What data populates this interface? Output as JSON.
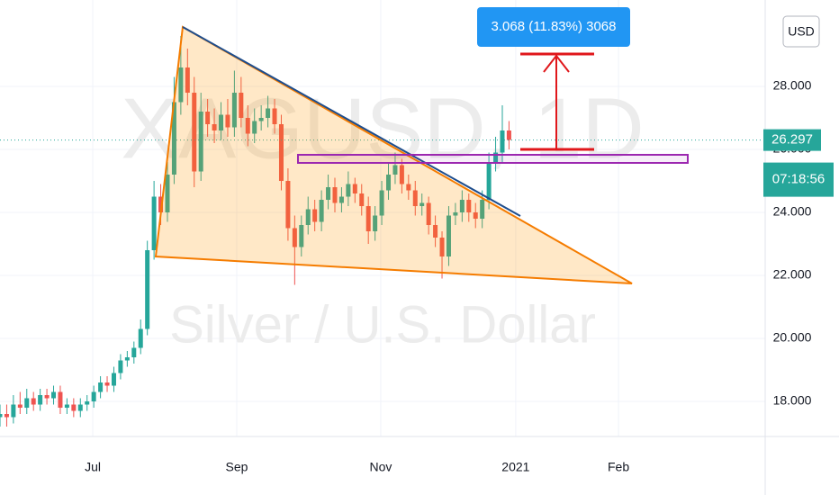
{
  "chart_data": {
    "type": "candlestick",
    "watermark_symbol": "XAGUSD, 1D",
    "watermark_name": "Silver / U.S. Dollar",
    "currency": "USD",
    "last_price": 26.297,
    "countdown": "07:18:56",
    "measure_label": "3.068 (11.83%) 3068",
    "up_color": "#26a69a",
    "down_color": "#ef5350",
    "grid": true,
    "x": [
      0,
      2,
      4,
      6,
      8,
      10,
      12,
      14,
      16,
      18,
      20,
      22,
      24,
      26,
      28,
      30,
      32,
      34,
      36,
      38,
      40,
      42,
      44,
      46,
      48,
      50,
      52,
      54,
      56,
      58,
      60,
      62,
      64,
      66,
      68,
      70,
      72,
      74,
      76,
      78,
      80,
      82,
      84,
      86,
      88,
      90,
      92,
      94,
      96,
      98,
      100,
      102,
      104,
      106,
      108,
      110,
      112,
      114,
      116,
      118,
      120,
      122,
      124,
      126,
      128,
      130,
      132,
      134,
      136,
      138,
      140,
      142,
      144,
      146,
      148,
      150,
      152
    ],
    "open": [
      17.5,
      17.6,
      17.5,
      17.9,
      17.8,
      18.1,
      17.9,
      18.2,
      18.1,
      18.3,
      17.8,
      17.9,
      17.7,
      17.9,
      18.0,
      18.3,
      18.6,
      18.5,
      18.9,
      19.3,
      19.4,
      19.7,
      20.3,
      22.8,
      24.5,
      24.0,
      25.2,
      27.5,
      28.6,
      27.8,
      25.3,
      27.2,
      26.8,
      26.6,
      27.1,
      26.7,
      27.8,
      27.0,
      26.5,
      26.9,
      27.0,
      27.3,
      26.8,
      25.0,
      23.5,
      22.9,
      23.6,
      24.1,
      23.7,
      24.4,
      24.8,
      24.3,
      24.5,
      24.9,
      24.6,
      24.2,
      23.4,
      23.9,
      24.7,
      25.2,
      25.5,
      24.9,
      24.7,
      24.2,
      24.3,
      23.6,
      23.2,
      22.6,
      23.9,
      24.0,
      24.4,
      24.0,
      23.8,
      24.4,
      25.6,
      25.9,
      26.6
    ],
    "high": [
      17.9,
      17.9,
      18.2,
      18.3,
      18.4,
      18.3,
      18.4,
      18.4,
      18.5,
      18.5,
      18.1,
      18.1,
      18.1,
      18.2,
      18.5,
      18.8,
      18.8,
      19.1,
      19.5,
      19.6,
      19.9,
      20.6,
      23.1,
      25.0,
      24.9,
      25.6,
      28.3,
      29.6,
      29.2,
      28.3,
      27.8,
      27.6,
      27.3,
      27.5,
      27.6,
      28.5,
      28.3,
      27.4,
      27.3,
      27.4,
      27.7,
      27.6,
      27.1,
      25.4,
      23.9,
      23.9,
      24.5,
      24.4,
      24.7,
      25.2,
      25.1,
      24.8,
      25.3,
      25.1,
      24.9,
      24.5,
      24.2,
      25.0,
      25.6,
      25.9,
      25.7,
      25.2,
      25.0,
      24.6,
      24.5,
      23.9,
      23.4,
      24.2,
      24.3,
      24.7,
      24.6,
      24.3,
      24.7,
      25.9,
      26.4,
      27.4,
      26.9
    ],
    "low": [
      17.2,
      17.2,
      17.3,
      17.6,
      17.6,
      17.7,
      17.7,
      17.9,
      17.9,
      17.6,
      17.6,
      17.5,
      17.5,
      17.7,
      17.8,
      18.1,
      18.3,
      18.3,
      18.7,
      19.1,
      19.2,
      19.5,
      20.1,
      22.5,
      23.6,
      23.7,
      24.9,
      27.1,
      27.4,
      24.8,
      25.0,
      26.4,
      26.2,
      26.3,
      26.4,
      26.4,
      26.7,
      26.1,
      26.2,
      26.6,
      26.7,
      26.5,
      24.7,
      23.1,
      21.7,
      22.6,
      23.3,
      23.4,
      23.4,
      24.1,
      24.0,
      24.0,
      24.2,
      24.3,
      23.9,
      23.0,
      23.1,
      23.6,
      24.4,
      24.9,
      24.6,
      24.4,
      23.9,
      23.9,
      23.3,
      22.9,
      21.9,
      22.3,
      23.6,
      23.7,
      23.7,
      23.5,
      23.5,
      24.1,
      25.3,
      25.6,
      26.0
    ],
    "close": [
      17.6,
      17.5,
      17.9,
      17.8,
      18.1,
      17.9,
      18.2,
      18.1,
      18.3,
      17.8,
      17.9,
      17.7,
      17.9,
      18.0,
      18.3,
      18.6,
      18.5,
      18.9,
      19.3,
      19.4,
      19.7,
      20.3,
      22.8,
      24.5,
      24.0,
      25.2,
      27.5,
      28.6,
      27.8,
      25.3,
      27.2,
      26.8,
      26.6,
      27.1,
      26.7,
      27.8,
      27.0,
      26.5,
      26.9,
      27.0,
      27.3,
      26.8,
      25.0,
      23.5,
      22.9,
      23.6,
      24.1,
      23.7,
      24.4,
      24.8,
      24.3,
      24.5,
      24.9,
      24.6,
      24.2,
      23.4,
      23.9,
      24.7,
      25.2,
      25.5,
      24.9,
      24.7,
      24.2,
      24.3,
      23.6,
      23.2,
      22.6,
      23.9,
      24.0,
      24.4,
      24.0,
      23.8,
      24.4,
      25.6,
      25.9,
      26.6,
      26.3
    ],
    "xlim": [
      0,
      228.5
    ],
    "ylim": [
      16.886,
      30.743
    ],
    "xticks": [
      {
        "value": 27.7,
        "label": "Jul"
      },
      {
        "value": 70.7,
        "label": "Sep"
      },
      {
        "value": 113.7,
        "label": "Nov"
      },
      {
        "value": 154,
        "label": "2021"
      },
      {
        "value": 184.7,
        "label": "Feb"
      }
    ],
    "yticks": [
      {
        "value": 18,
        "label": "18.000"
      },
      {
        "value": 20,
        "label": "20.000"
      },
      {
        "value": 22,
        "label": "22.000"
      },
      {
        "value": 24,
        "label": "24.000"
      },
      {
        "value": 26,
        "label": "26.000"
      },
      {
        "value": 28,
        "label": "28.000"
      }
    ]
  }
}
